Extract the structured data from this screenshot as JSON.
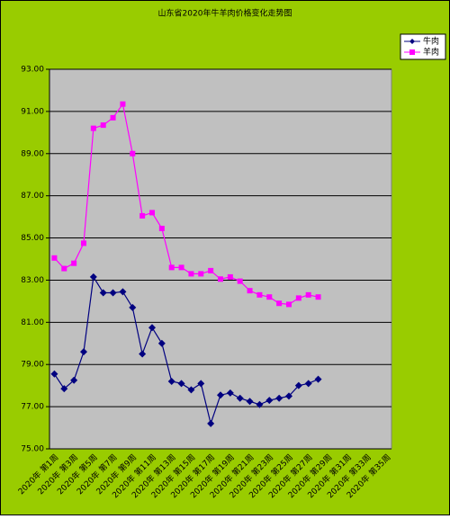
{
  "chart_data": {
    "type": "line",
    "title": "山东省2020年牛羊肉价格变化走势图",
    "categories": [
      "2020年 第1周",
      null,
      "2020年 第3周",
      null,
      "2020年 第5周",
      null,
      "2020年 第7周",
      null,
      "2020年 第9周",
      null,
      "2020年 第11周",
      null,
      "2020年 第13周",
      null,
      "2020年 第15周",
      null,
      "2020年 第17周",
      null,
      "2020年 第19周",
      null,
      "2020年 第21周",
      null,
      "2020年 第23周",
      null,
      "2020年 第25周",
      null,
      "2020年 第27周",
      null,
      "2020年 第29周",
      null,
      "2020年 第31周",
      null,
      "2020年 第33周",
      null,
      "2020年 第35周"
    ],
    "series": [
      {
        "name": "牛肉",
        "color": "#000080",
        "marker": "diamond",
        "values": [
          78.55,
          77.85,
          78.25,
          79.6,
          83.15,
          82.4,
          82.4,
          82.45,
          81.7,
          79.5,
          80.75,
          80.0,
          78.2,
          78.1,
          77.8,
          78.1,
          76.2,
          77.55,
          77.65,
          77.4,
          77.25,
          77.1,
          77.3,
          77.4,
          77.5,
          78.0,
          78.1,
          78.3,
          null,
          null,
          null,
          null,
          null,
          null,
          null
        ]
      },
      {
        "name": "羊肉",
        "color": "#ff00ff",
        "marker": "square",
        "values": [
          84.05,
          83.55,
          83.8,
          84.75,
          90.2,
          90.35,
          90.7,
          91.35,
          89.0,
          86.05,
          86.2,
          85.45,
          83.6,
          83.6,
          83.3,
          83.3,
          83.45,
          83.05,
          83.15,
          82.95,
          82.5,
          82.3,
          82.2,
          81.9,
          81.85,
          82.15,
          82.3,
          82.2,
          null,
          null,
          null,
          null,
          null,
          null,
          null
        ]
      }
    ],
    "ylim": [
      75,
      93
    ],
    "yticks": [
      {
        "value": 75,
        "label": "75.00"
      },
      {
        "value": 77,
        "label": "77.00"
      },
      {
        "value": 79,
        "label": "79.00"
      },
      {
        "value": 81,
        "label": "81.00"
      },
      {
        "value": 83,
        "label": "83.00"
      },
      {
        "value": 85,
        "label": "85.00"
      },
      {
        "value": 87,
        "label": "87.00"
      },
      {
        "value": 89,
        "label": "89.00"
      },
      {
        "value": 91,
        "label": "91.00"
      },
      {
        "value": 93,
        "label": "93.00"
      }
    ],
    "grid": true,
    "legend": "top-right"
  }
}
